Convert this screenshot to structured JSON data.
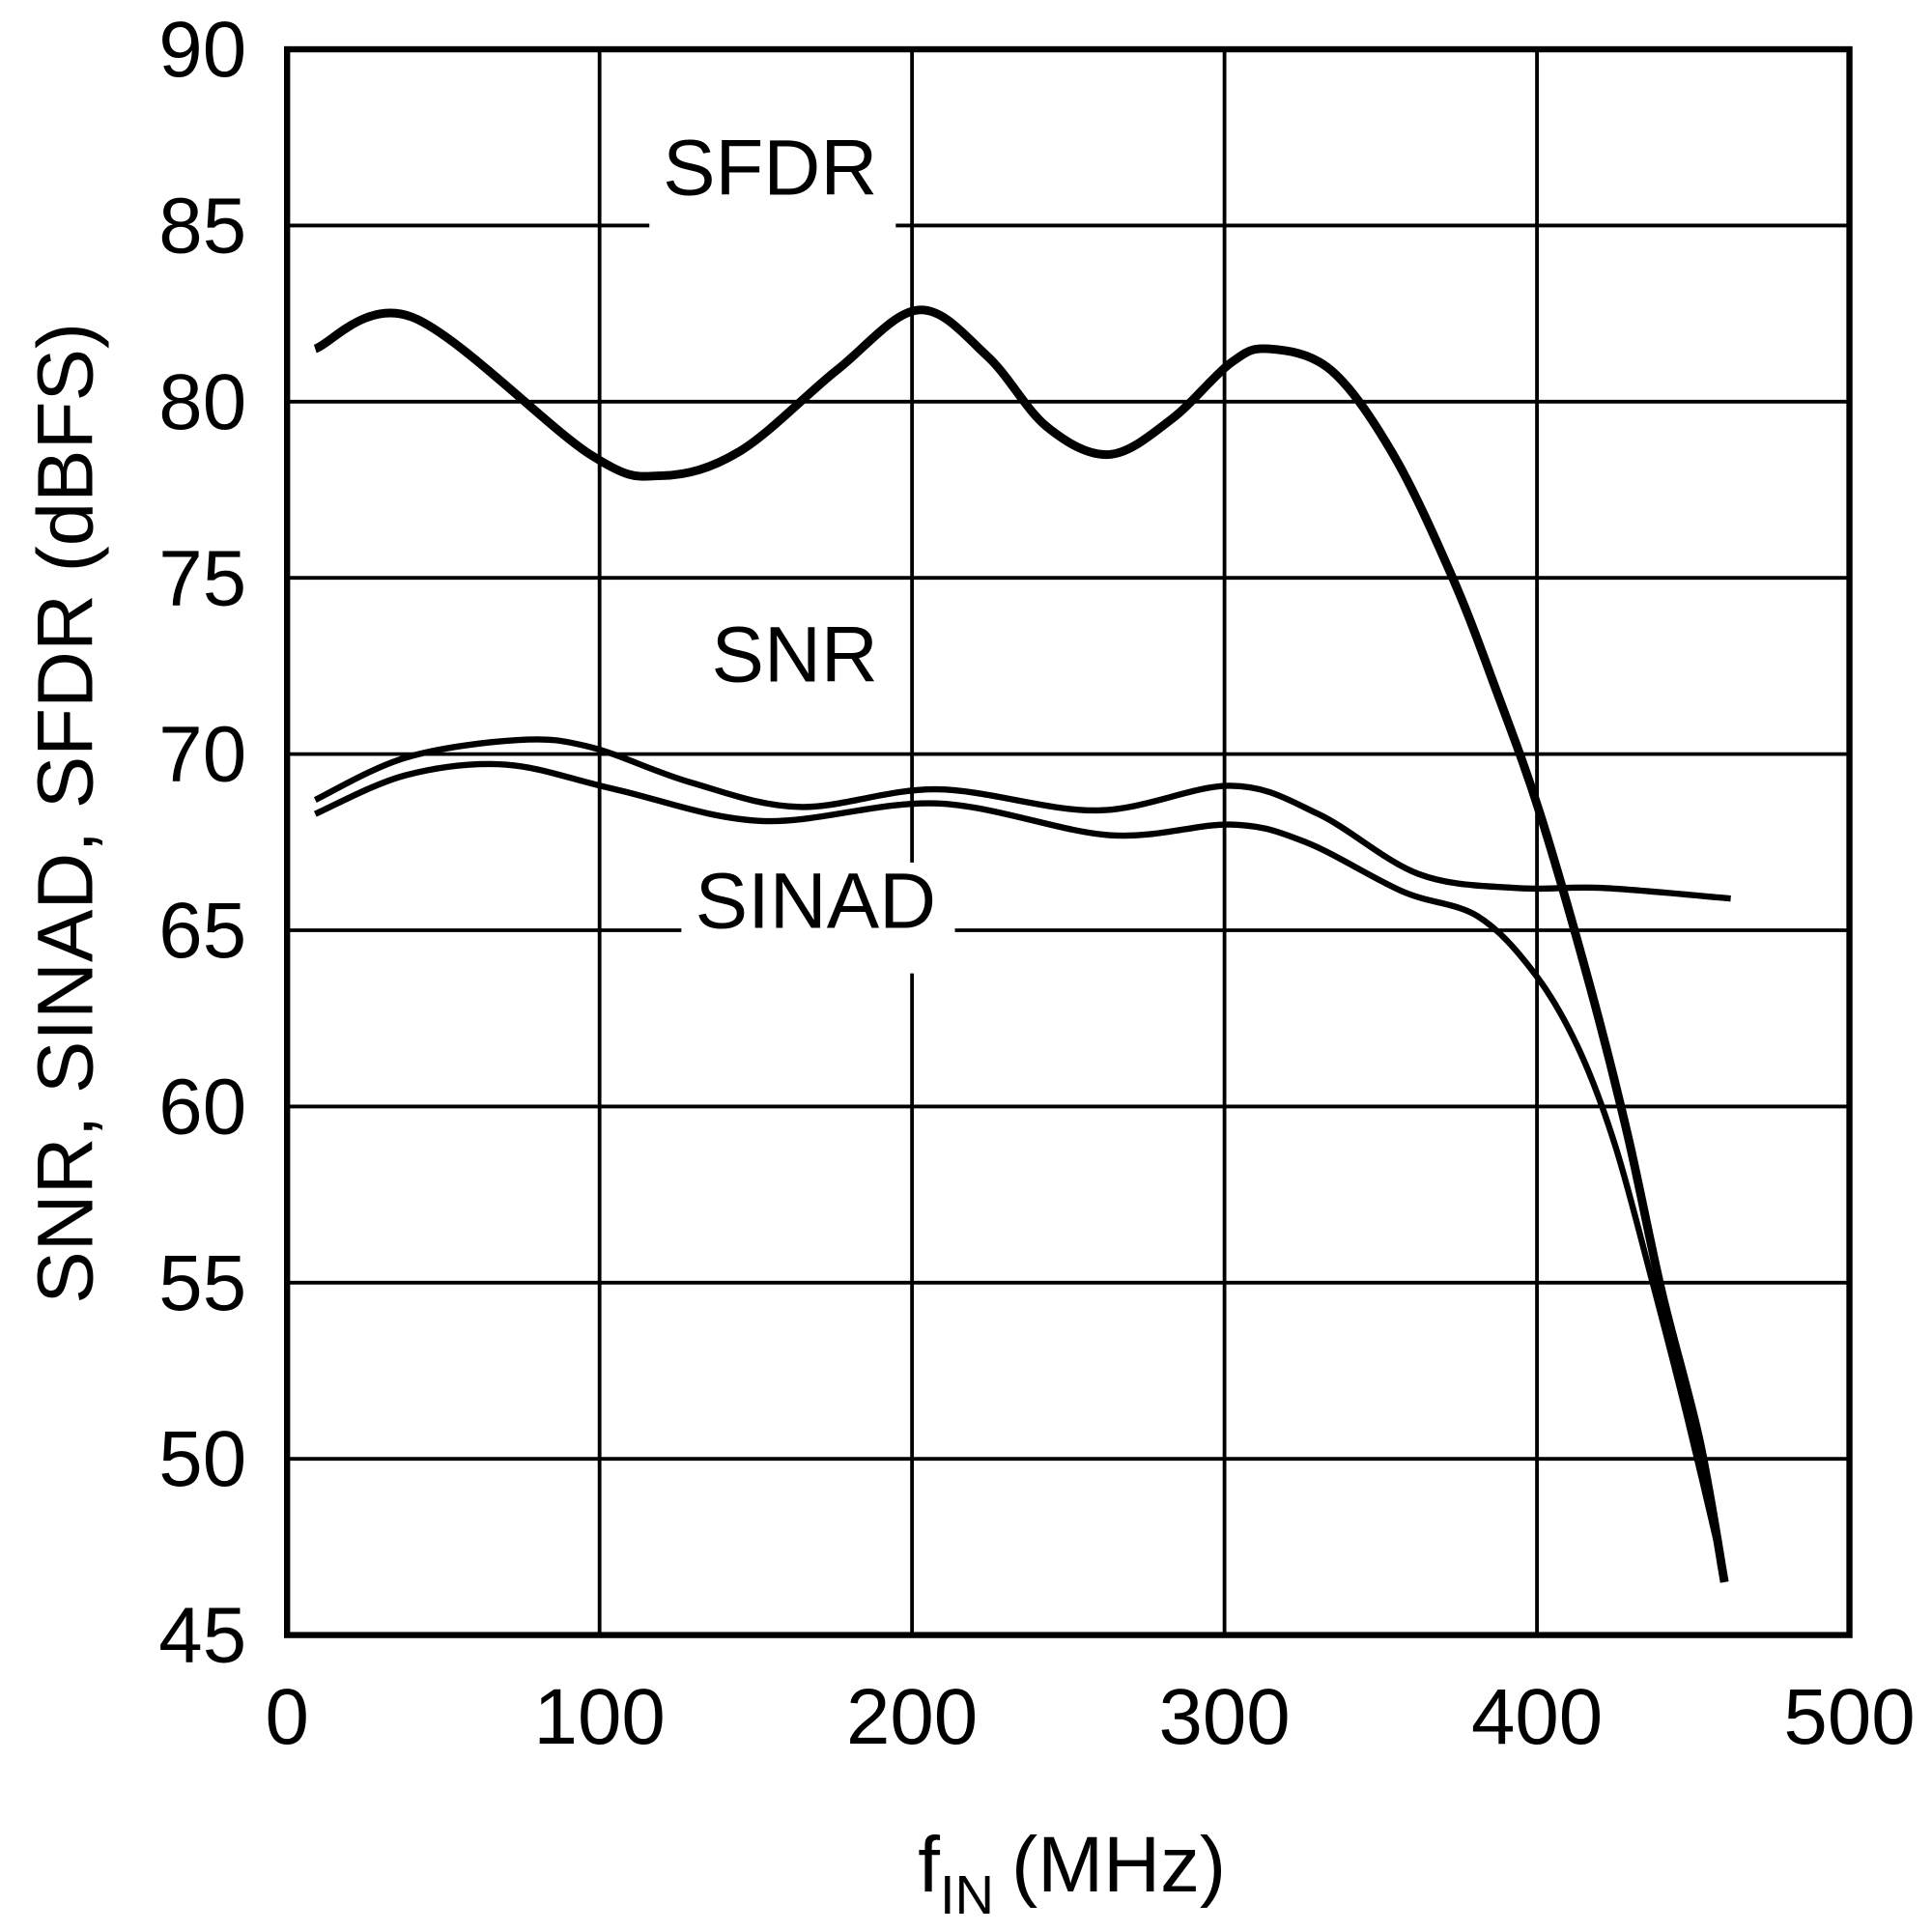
{
  "chart_data": {
    "type": "line",
    "title": "",
    "xlabel": "f",
    "xlabel_sub": "IN",
    "xlabel_unit": "(MHz)",
    "ylabel": "SNR, SINAD, SFDR (dBFS)",
    "xlim": [
      0,
      500
    ],
    "ylim": [
      45,
      90
    ],
    "grid": true,
    "x_ticks": [
      "0",
      "100",
      "200",
      "300",
      "400",
      "500"
    ],
    "y_ticks": [
      "45",
      "50",
      "55",
      "60",
      "65",
      "70",
      "75",
      "80",
      "85",
      "90"
    ],
    "line_color": "#000000",
    "series": [
      {
        "name": "SFDR",
        "x": [
          9,
          40,
          97,
          120,
          145,
          176,
          202,
          224,
          243,
          263,
          283,
          302,
          314,
          334,
          354,
          373,
          387,
          401,
          417,
          429,
          440,
          452,
          460
        ],
        "y": [
          81.5,
          82.4,
          78.5,
          77.9,
          78.6,
          80.9,
          82.6,
          81.3,
          79.3,
          78.5,
          79.5,
          81.1,
          81.5,
          80.9,
          78.5,
          75.0,
          71.8,
          68.3,
          63.4,
          59.2,
          54.7,
          50.5,
          46.5
        ]
      },
      {
        "name": "SNR",
        "x": [
          9,
          38,
          74,
          97,
          129,
          164,
          208,
          259,
          302,
          330,
          362,
          393,
          421,
          462
        ],
        "y": [
          68.7,
          69.9,
          70.4,
          70.2,
          69.2,
          68.5,
          69.0,
          68.4,
          69.1,
          68.3,
          66.6,
          66.2,
          66.2,
          65.9
        ]
      },
      {
        "name": "SINAD",
        "x": [
          9,
          38,
          70,
          105,
          152,
          208,
          263,
          302,
          326,
          357,
          381,
          399,
          413,
          425,
          437,
          448,
          460
        ],
        "y": [
          68.3,
          69.4,
          69.7,
          69.0,
          68.1,
          68.6,
          67.7,
          68.0,
          67.5,
          66.1,
          65.4,
          63.8,
          61.7,
          58.9,
          55.0,
          51.2,
          46.7
        ]
      }
    ]
  }
}
